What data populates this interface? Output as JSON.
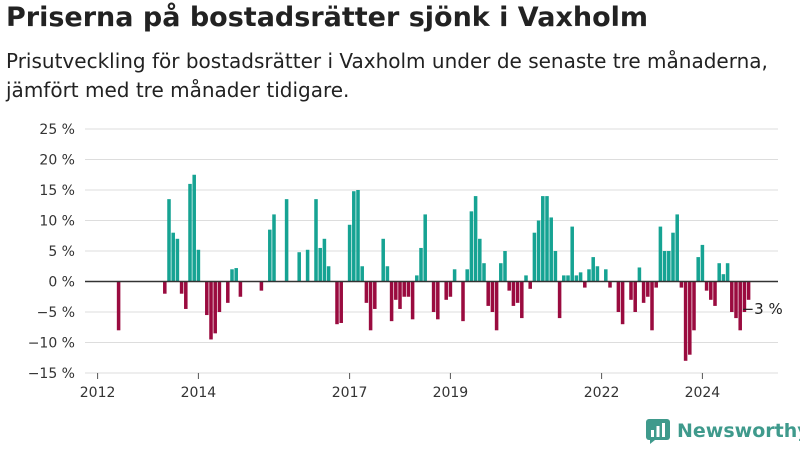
{
  "title": "Priserna på bostadsrätter sjönk i Vaxholm",
  "subtitle": "Prisutveckling för bostadsrätter i Vaxholm under de senaste tre månaderna, jämfört med tre månader tidigare.",
  "brand": "Newsworthy",
  "colors": {
    "positive": "#16a393",
    "negative": "#9a0b3f",
    "brand": "#3f9a8c"
  },
  "chart_data": {
    "type": "bar",
    "title": "Priserna på bostadsrätter sjönk i Vaxholm",
    "subtitle": "Prisutveckling för bostadsrätter i Vaxholm under de senaste tre månaderna, jämfört med tre månader tidigare.",
    "ylim": [
      -15,
      25
    ],
    "y_ticks": [
      {
        "value": 25,
        "label": "25 %"
      },
      {
        "value": 20,
        "label": "20 %"
      },
      {
        "value": 15,
        "label": "15 %"
      },
      {
        "value": 10,
        "label": "10 %"
      },
      {
        "value": 5,
        "label": "5 %"
      },
      {
        "value": 0,
        "label": "0 %"
      },
      {
        "value": -5,
        "label": "−5 %"
      },
      {
        "value": -10,
        "label": "−10 %"
      },
      {
        "value": -15,
        "label": "−15 %"
      }
    ],
    "x_ticks": [
      {
        "date": "2012-01",
        "label": "2012"
      },
      {
        "date": "2014-01",
        "label": "2014"
      },
      {
        "date": "2017-01",
        "label": "2017"
      },
      {
        "date": "2019-01",
        "label": "2019"
      },
      {
        "date": "2022-01",
        "label": "2022"
      },
      {
        "date": "2024-01",
        "label": "2024"
      }
    ],
    "xlim": [
      "2011-10",
      "2025-07"
    ],
    "grid": true,
    "annotation": {
      "date": "2024-12",
      "value": -3,
      "label": "−3 %"
    },
    "series": [
      {
        "data": [
          [
            "2012-06",
            -8
          ],
          [
            "2013-05",
            -2
          ],
          [
            "2013-06",
            13.5
          ],
          [
            "2013-07",
            8
          ],
          [
            "2013-08",
            7
          ],
          [
            "2013-09",
            -2
          ],
          [
            "2013-10",
            -4.5
          ],
          [
            "2014-01",
            5.2
          ],
          [
            "2013-11",
            16
          ],
          [
            "2013-12",
            17.5
          ],
          [
            "2014-03",
            -5.5
          ],
          [
            "2014-04",
            -9.5
          ],
          [
            "2014-05",
            -8.5
          ],
          [
            "2014-06",
            -5
          ],
          [
            "2014-08",
            -3.5
          ],
          [
            "2014-09",
            2
          ],
          [
            "2014-10",
            2.2
          ],
          [
            "2014-11",
            -2.5
          ],
          [
            "2015-04",
            -1.5
          ],
          [
            "2015-06",
            8.5
          ],
          [
            "2015-07",
            11
          ],
          [
            "2015-10",
            13.5
          ],
          [
            "2016-01",
            4.8
          ],
          [
            "2016-03",
            5.2
          ],
          [
            "2016-05",
            13.5
          ],
          [
            "2016-06",
            5.5
          ],
          [
            "2016-07",
            7
          ],
          [
            "2016-08",
            2.5
          ],
          [
            "2016-10",
            -7
          ],
          [
            "2016-11",
            -6.8
          ],
          [
            "2017-01",
            9.3
          ],
          [
            "2017-02",
            14.8
          ],
          [
            "2017-03",
            15
          ],
          [
            "2017-04",
            2.5
          ],
          [
            "2017-05",
            -3.5
          ],
          [
            "2017-06",
            -8
          ],
          [
            "2017-07",
            -4.5
          ],
          [
            "2017-09",
            7
          ],
          [
            "2017-10",
            2.5
          ],
          [
            "2017-11",
            -6.5
          ],
          [
            "2017-12",
            -3
          ],
          [
            "2018-01",
            -4.5
          ],
          [
            "2018-02",
            -2.5
          ],
          [
            "2018-03",
            -2.5
          ],
          [
            "2018-04",
            -6.2
          ],
          [
            "2018-05",
            1
          ],
          [
            "2018-06",
            5.5
          ],
          [
            "2018-07",
            11
          ],
          [
            "2018-09",
            -5
          ],
          [
            "2018-10",
            -6.2
          ],
          [
            "2018-12",
            -3
          ],
          [
            "2019-01",
            -2.5
          ],
          [
            "2019-02",
            2
          ],
          [
            "2019-04",
            -6.5
          ],
          [
            "2019-05",
            2
          ],
          [
            "2019-06",
            11.5
          ],
          [
            "2019-07",
            14
          ],
          [
            "2019-08",
            7
          ],
          [
            "2019-09",
            3
          ],
          [
            "2019-10",
            -4
          ],
          [
            "2019-11",
            -5
          ],
          [
            "2019-12",
            -8
          ],
          [
            "2020-01",
            3
          ],
          [
            "2020-02",
            5
          ],
          [
            "2020-03",
            -1.5
          ],
          [
            "2020-04",
            -4
          ],
          [
            "2020-05",
            -3.5
          ],
          [
            "2020-06",
            -6
          ],
          [
            "2020-07",
            1
          ],
          [
            "2020-08",
            -1.2
          ],
          [
            "2020-09",
            8
          ],
          [
            "2020-10",
            10
          ],
          [
            "2020-11",
            14
          ],
          [
            "2020-12",
            14
          ],
          [
            "2021-01",
            10.5
          ],
          [
            "2021-02",
            5
          ],
          [
            "2021-03",
            -6
          ],
          [
            "2021-04",
            1
          ],
          [
            "2021-05",
            1
          ],
          [
            "2021-06",
            9
          ],
          [
            "2021-07",
            1
          ],
          [
            "2021-08",
            1.5
          ],
          [
            "2021-09",
            -1
          ],
          [
            "2021-10",
            2
          ],
          [
            "2021-11",
            4
          ],
          [
            "2021-12",
            2.5
          ],
          [
            "2022-02",
            2
          ],
          [
            "2022-03",
            -1
          ],
          [
            "2022-05",
            -5
          ],
          [
            "2022-06",
            -7
          ],
          [
            "2022-08",
            -3
          ],
          [
            "2022-09",
            -5
          ],
          [
            "2022-10",
            2.3
          ],
          [
            "2022-11",
            -3.5
          ],
          [
            "2022-12",
            -2.5
          ],
          [
            "2023-01",
            -8
          ],
          [
            "2023-02",
            -1
          ],
          [
            "2023-03",
            9
          ],
          [
            "2023-04",
            5
          ],
          [
            "2023-05",
            5
          ],
          [
            "2023-06",
            8
          ],
          [
            "2023-07",
            11
          ],
          [
            "2023-08",
            -1
          ],
          [
            "2023-09",
            -13
          ],
          [
            "2023-10",
            -12
          ],
          [
            "2023-11",
            -8
          ],
          [
            "2023-12",
            4
          ],
          [
            "2024-01",
            6
          ],
          [
            "2024-02",
            -1.5
          ],
          [
            "2024-03",
            -3
          ],
          [
            "2024-04",
            -4
          ],
          [
            "2024-05",
            3
          ],
          [
            "2024-06",
            1.2
          ],
          [
            "2024-07",
            3
          ],
          [
            "2024-08",
            -5
          ],
          [
            "2024-09",
            -6
          ],
          [
            "2024-10",
            -8
          ],
          [
            "2024-11",
            -5
          ],
          [
            "2024-12",
            -3
          ]
        ]
      }
    ]
  }
}
